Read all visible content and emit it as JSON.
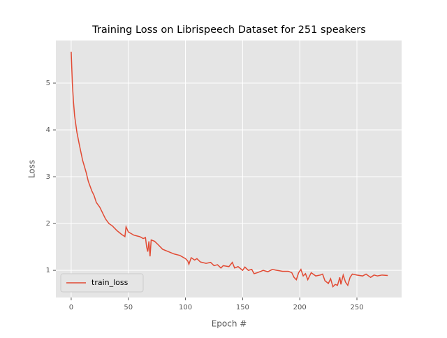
{
  "chart_data": {
    "type": "line",
    "title": "Training Loss on Librispeech Dataset for 251 speakers",
    "x_label": "Epoch #",
    "y_label": "Loss",
    "x": [
      0,
      1,
      2,
      3,
      5,
      7,
      10,
      13,
      15,
      18,
      20,
      22,
      25,
      28,
      30,
      33,
      36,
      40,
      44,
      47,
      48,
      50,
      55,
      60,
      63,
      65,
      66,
      67,
      68,
      69,
      70,
      73,
      76,
      80,
      85,
      90,
      95,
      100,
      102,
      103,
      105,
      108,
      110,
      113,
      118,
      122,
      125,
      128,
      131,
      133,
      138,
      141,
      143,
      146,
      150,
      152,
      155,
      158,
      160,
      163,
      168,
      172,
      176,
      180,
      185,
      190,
      193,
      195,
      197,
      199,
      201,
      203,
      205,
      207,
      210,
      214,
      218,
      220,
      222,
      225,
      227,
      229,
      231,
      233,
      235,
      236,
      238,
      240,
      242,
      244,
      246,
      250,
      255,
      258,
      262,
      265,
      268,
      272,
      277
    ],
    "series": [
      {
        "name": "train_loss",
        "color": "#e24a33",
        "values": [
          5.67,
          5.0,
          4.6,
          4.3,
          3.95,
          3.7,
          3.35,
          3.1,
          2.9,
          2.7,
          2.6,
          2.45,
          2.35,
          2.2,
          2.1,
          2.0,
          1.95,
          1.85,
          1.77,
          1.72,
          1.93,
          1.82,
          1.75,
          1.72,
          1.68,
          1.7,
          1.5,
          1.4,
          1.62,
          1.3,
          1.65,
          1.62,
          1.55,
          1.45,
          1.4,
          1.35,
          1.32,
          1.25,
          1.2,
          1.13,
          1.27,
          1.22,
          1.25,
          1.18,
          1.15,
          1.17,
          1.1,
          1.12,
          1.05,
          1.1,
          1.08,
          1.17,
          1.05,
          1.08,
          1.0,
          1.07,
          1.0,
          1.02,
          0.93,
          0.95,
          1.0,
          0.97,
          1.02,
          1.0,
          0.98,
          0.98,
          0.95,
          0.85,
          0.8,
          0.95,
          1.02,
          0.88,
          0.93,
          0.8,
          0.95,
          0.88,
          0.9,
          0.92,
          0.78,
          0.72,
          0.82,
          0.65,
          0.7,
          0.68,
          0.85,
          0.7,
          0.9,
          0.75,
          0.68,
          0.85,
          0.92,
          0.9,
          0.88,
          0.92,
          0.85,
          0.9,
          0.88,
          0.9,
          0.89
        ]
      }
    ],
    "xlim": [
      -13.4,
      289.1
    ],
    "xticks": [
      0,
      50,
      100,
      150,
      200,
      250
    ],
    "ylim": [
      0.42,
      5.91
    ],
    "yticks": [
      1,
      2,
      3,
      4,
      5
    ],
    "grid": true,
    "legend": "lower left"
  }
}
